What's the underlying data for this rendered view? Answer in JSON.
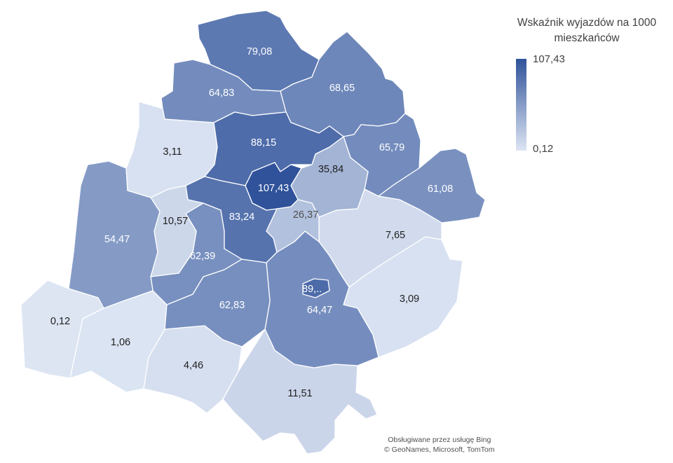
{
  "legend": {
    "title": "Wskaźnik wyjazdów na 1000 mieszkańców",
    "max_label": "107,43",
    "min_label": "0,12",
    "max_value": 107.43,
    "min_value": 0.12,
    "color_high": "#2f529a",
    "color_low": "#dde5f3"
  },
  "attribution": {
    "line1": "Obsługiwane przez usługę Bing",
    "line2": "© GeoNames, Microsoft, TomTom"
  },
  "regions": [
    {
      "name": "north-top",
      "value": 79.08,
      "label": "79,08"
    },
    {
      "name": "north-west",
      "value": 64.83,
      "label": "64,83"
    },
    {
      "name": "north-east",
      "value": 68.65,
      "label": "68,65"
    },
    {
      "name": "west-upper",
      "value": 3.11,
      "label": "3,11"
    },
    {
      "name": "center-north",
      "value": 88.15,
      "label": "88,15"
    },
    {
      "name": "east-upper",
      "value": 65.79,
      "label": "65,79"
    },
    {
      "name": "center-east",
      "value": 35.84,
      "label": "35,84"
    },
    {
      "name": "city-main",
      "value": 107.43,
      "label": "107,43"
    },
    {
      "name": "far-east",
      "value": 61.08,
      "label": "61,08"
    },
    {
      "name": "west-mid",
      "value": 54.47,
      "label": "54,47"
    },
    {
      "name": "west-center",
      "value": 10.57,
      "label": "10,57"
    },
    {
      "name": "center-west",
      "value": 83.24,
      "label": "83,24"
    },
    {
      "name": "center-south",
      "value": 26.37,
      "label": "26,37"
    },
    {
      "name": "east-mid",
      "value": 7.65,
      "label": "7,65"
    },
    {
      "name": "south-west-center",
      "value": 62.39,
      "label": "62,39"
    },
    {
      "name": "south-center-west",
      "value": 62.83,
      "label": "62,83"
    },
    {
      "name": "south-center",
      "value": 64.47,
      "label": "64,47"
    },
    {
      "name": "small-city",
      "value": 89,
      "label": "89,.."
    },
    {
      "name": "south-east",
      "value": 3.09,
      "label": "3,09"
    },
    {
      "name": "south-west-far",
      "value": 0.12,
      "label": "0,12"
    },
    {
      "name": "south-west",
      "value": 1.06,
      "label": "1,06"
    },
    {
      "name": "south-mid",
      "value": 4.46,
      "label": "4,46"
    },
    {
      "name": "south",
      "value": 11.51,
      "label": "11,51"
    }
  ]
}
